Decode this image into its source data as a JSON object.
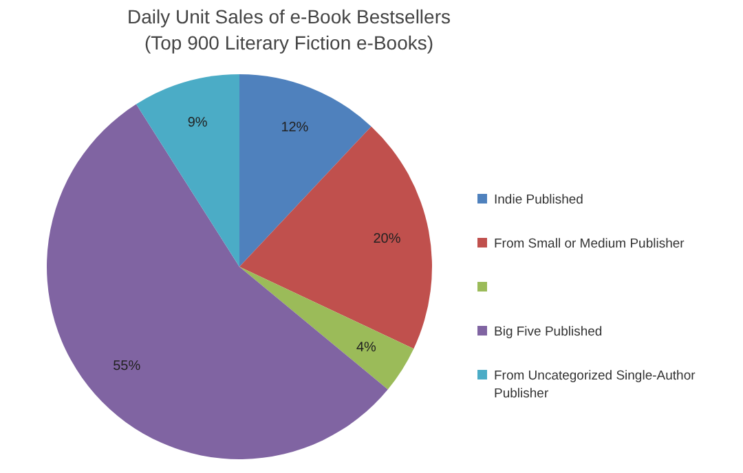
{
  "chart_data": {
    "type": "pie",
    "title": "Daily Unit Sales of e-Book Bestsellers\n(Top 900 Literary Fiction e-Books)",
    "categories": [
      "Indie Published",
      "From Small or Medium Publisher",
      null,
      "Big Five Published",
      "From Uncategorized Single-Author Publisher"
    ],
    "values": [
      12,
      20,
      4,
      55,
      9
    ],
    "colors": [
      "#4f81bd",
      "#c0504d",
      "#9bbb59",
      "#8064a2",
      "#4bacc6"
    ],
    "value_labels": [
      "12%",
      "20%",
      "4%",
      "55%",
      "9%"
    ],
    "legend": "right"
  }
}
